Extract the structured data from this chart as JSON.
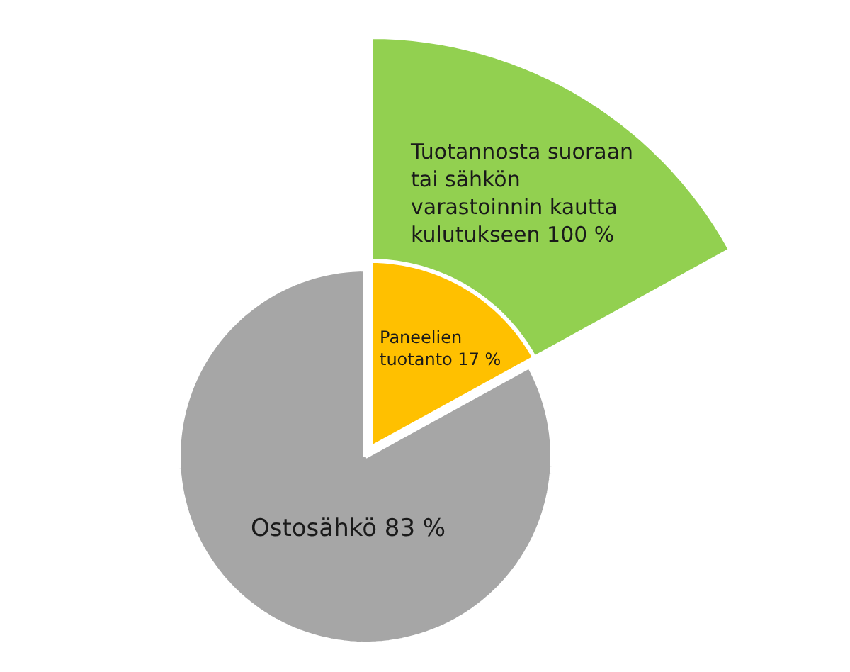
{
  "chart_data": {
    "type": "pie",
    "series": [
      {
        "values": [
          17,
          83
        ],
        "colors": [
          "#ffc000",
          "#a6a6a6"
        ],
        "value_labels": [
          "Paneelien tuotanto 17 %",
          "Ostosähkö 83 %"
        ]
      },
      {
        "values": [
          100
        ],
        "colors": [
          "#92d050"
        ],
        "value_labels": [
          "Tuotannosta suoraan tai sähkön varastoinnin kautta kulutukseen 100 %"
        ]
      }
    ]
  }
}
